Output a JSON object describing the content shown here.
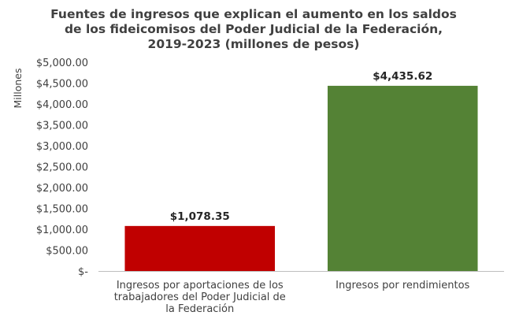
{
  "chart_data": {
    "type": "bar",
    "title": [
      "Fuentes de ingresos que explican el aumento en los saldos",
      "de los fideicomisos del Poder Judicial de la Federación,",
      "2019-2023 (millones de pesos)"
    ],
    "ylabel": "Millones",
    "xlabel": "",
    "ylim": [
      0,
      5000
    ],
    "ytick_values": [
      0,
      500,
      1000,
      1500,
      2000,
      2500,
      3000,
      3500,
      4000,
      4500,
      5000
    ],
    "ytick_labels": [
      "$-",
      "$500.00",
      "$1,000.00",
      "$1,500.00",
      "$2,000.00",
      "$2,500.00",
      "$3,000.00",
      "$3,500.00",
      "$4,000.00",
      "$4,500.00",
      "$5,000.00"
    ],
    "categories": [
      [
        "Ingresos por aportaciones de los",
        "trabajadores del Poder Judicial de",
        "la Federación"
      ],
      [
        "Ingresos por rendimientos"
      ]
    ],
    "values": [
      1078.35,
      4435.62
    ],
    "data_labels": [
      "$1,078.35",
      "$4,435.62"
    ],
    "colors": [
      "#c00000",
      "#548235"
    ],
    "axis_color": "#bfbfbf",
    "grid": false,
    "legend": "none"
  }
}
